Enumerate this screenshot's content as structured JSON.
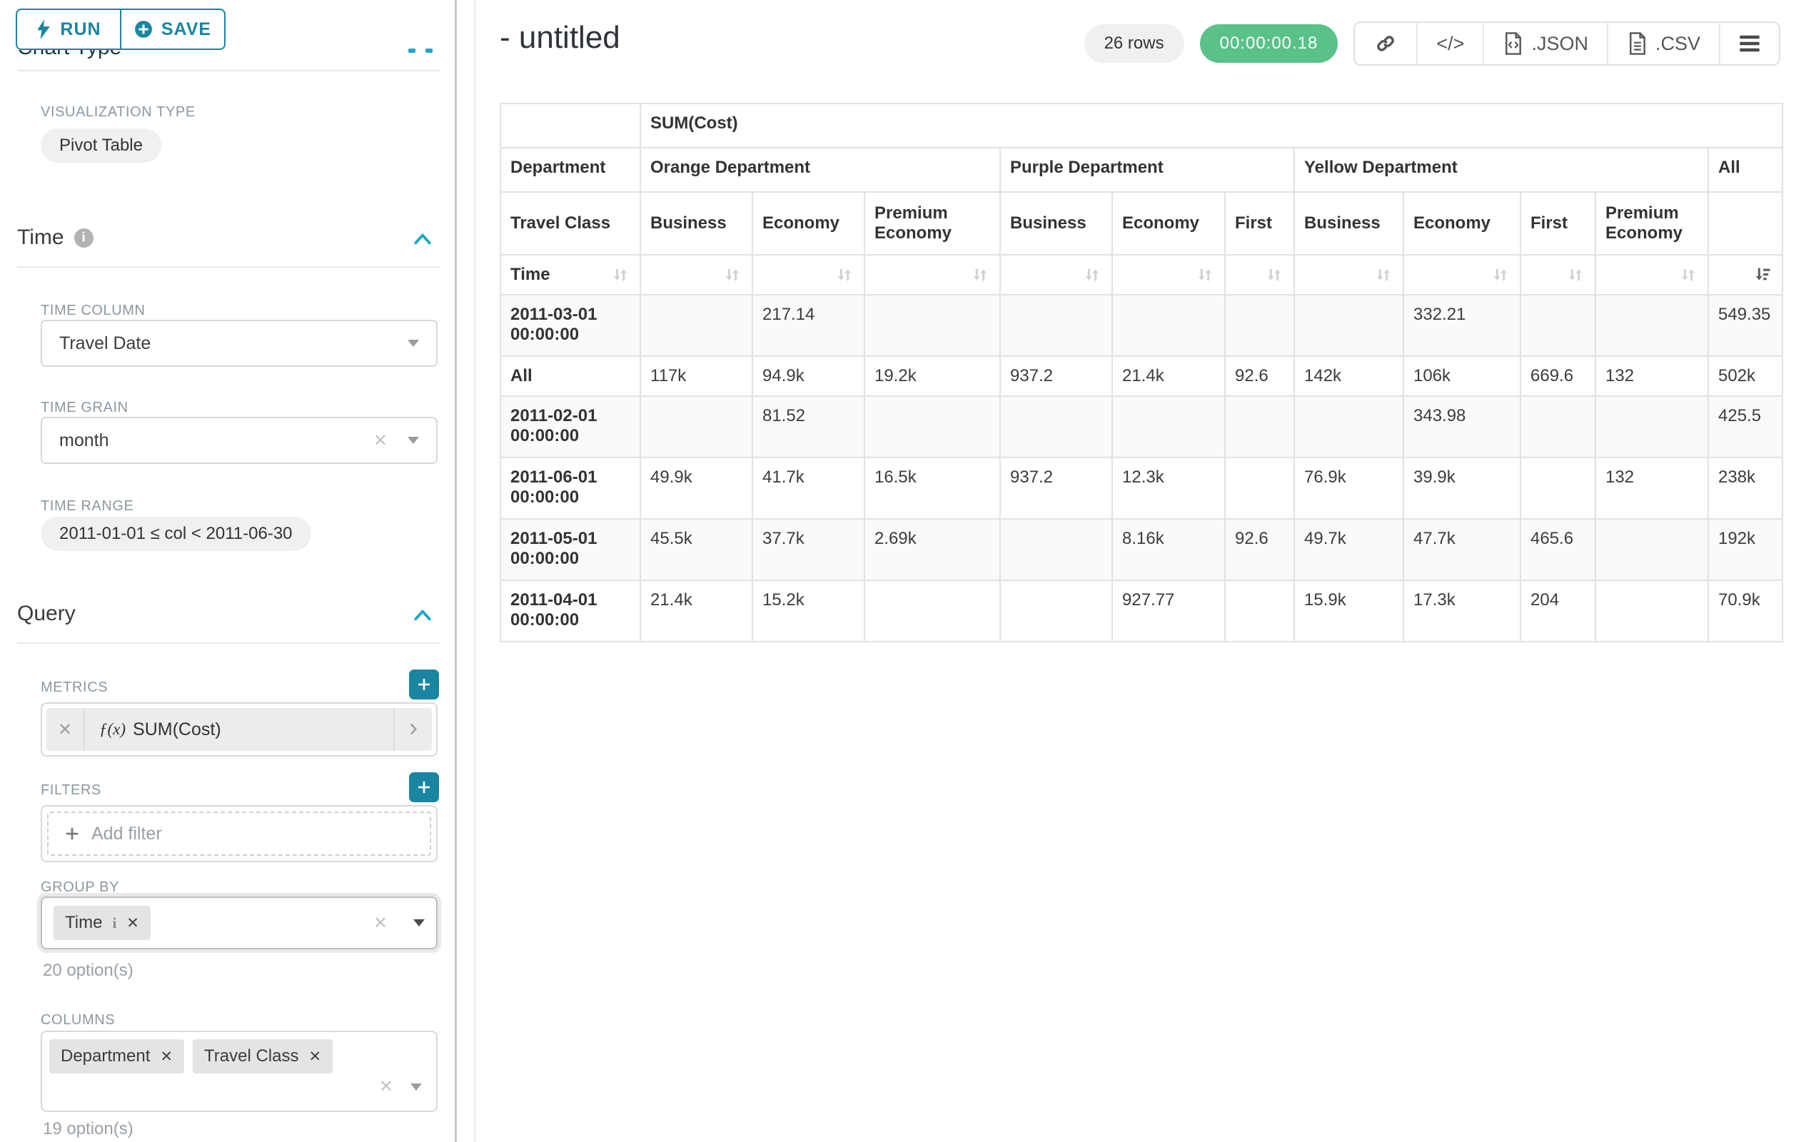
{
  "colors": {
    "teal": "#1a85a0",
    "teal_bright": "#20a7c9",
    "green": "#5ac189"
  },
  "toolbar": {
    "run_label": "RUN",
    "save_label": "SAVE"
  },
  "sidebar": {
    "chart_type_heading": "Chart Type",
    "visualization_type_label": "VISUALIZATION TYPE",
    "visualization_type_value": "Pivot Table",
    "time_section": {
      "title": "Time",
      "time_column_label": "TIME COLUMN",
      "time_column_value": "Travel Date",
      "time_grain_label": "TIME GRAIN",
      "time_grain_value": "month",
      "time_range_label": "TIME RANGE",
      "time_range_value": "2011-01-01 ≤ col < 2011-06-30"
    },
    "query_section": {
      "title": "Query",
      "metrics_label": "METRICS",
      "metric_prefix": "ƒ(x)",
      "metric_value": "SUM(Cost)",
      "filters_label": "FILTERS",
      "add_filter_label": "Add filter",
      "group_by_label": "GROUP BY",
      "group_by_pills": [
        {
          "label": "Time"
        }
      ],
      "group_by_hint": "20 option(s)",
      "columns_label": "COLUMNS",
      "columns_pills": [
        {
          "label": "Department"
        },
        {
          "label": "Travel Class"
        }
      ],
      "columns_hint": "19 option(s)"
    }
  },
  "header": {
    "title": "- untitled",
    "row_count_badge": "26 rows",
    "timer_badge": "00:00:00.18",
    "embed_glyph": "</>",
    "export_json_label": ".JSON",
    "export_csv_label": ".CSV"
  },
  "pivot_table": {
    "metric_label": "SUM(Cost)",
    "department_axis_label": "Department",
    "travel_axis_label": "Travel Class",
    "time_axis_label": "Time",
    "groups": [
      {
        "label": "Orange Department",
        "cols": [
          "Business",
          "Economy",
          "Premium Economy"
        ]
      },
      {
        "label": "Purple Department",
        "cols": [
          "Business",
          "Economy",
          "First"
        ]
      },
      {
        "label": "Yellow Department",
        "cols": [
          "Business",
          "Economy",
          "First",
          "Premium Economy"
        ]
      },
      {
        "label": "All",
        "cols": [
          ""
        ]
      }
    ],
    "rows": [
      {
        "label": "2011-03-01 00:00:00",
        "values": [
          "",
          "217.14",
          "",
          "",
          "",
          "",
          "",
          "332.21",
          "",
          "",
          "549.35"
        ]
      },
      {
        "label": "All",
        "values": [
          "117k",
          "94.9k",
          "19.2k",
          "937.2",
          "21.4k",
          "92.6",
          "142k",
          "106k",
          "669.6",
          "132",
          "502k"
        ]
      },
      {
        "label": "2011-02-01 00:00:00",
        "values": [
          "",
          "81.52",
          "",
          "",
          "",
          "",
          "",
          "343.98",
          "",
          "",
          "425.5"
        ]
      },
      {
        "label": "2011-06-01 00:00:00",
        "values": [
          "49.9k",
          "41.7k",
          "16.5k",
          "937.2",
          "12.3k",
          "",
          "76.9k",
          "39.9k",
          "",
          "132",
          "238k"
        ]
      },
      {
        "label": "2011-05-01 00:00:00",
        "values": [
          "45.5k",
          "37.7k",
          "2.69k",
          "",
          "8.16k",
          "92.6",
          "49.7k",
          "47.7k",
          "465.6",
          "",
          "192k"
        ]
      },
      {
        "label": "2011-04-01 00:00:00",
        "values": [
          "21.4k",
          "15.2k",
          "",
          "",
          "927.77",
          "",
          "15.9k",
          "17.3k",
          "204",
          "",
          "70.9k"
        ]
      }
    ]
  }
}
